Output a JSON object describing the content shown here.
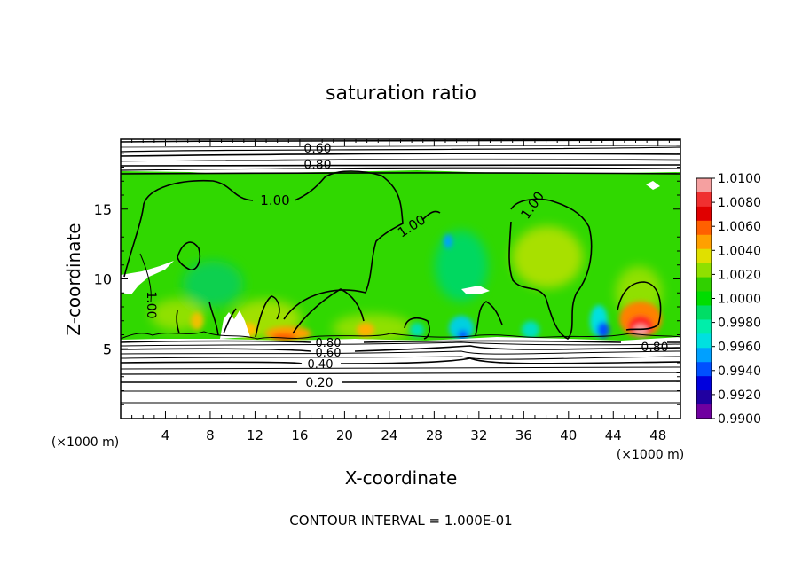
{
  "chart_data": {
    "type": "heatmap",
    "title": "saturation ratio",
    "xlabel": "X-coordinate",
    "ylabel": "Z-coordinate",
    "x_unit_left": "(×1000 m)",
    "x_unit_right": "(×1000 m)",
    "xlim": [
      0,
      50
    ],
    "ylim": [
      0,
      20
    ],
    "x_ticks": [
      4,
      8,
      12,
      16,
      20,
      24,
      28,
      32,
      36,
      40,
      44,
      48
    ],
    "x_tick_labels": [
      "4",
      "8",
      "12",
      "16",
      "20",
      "24",
      "28",
      "32",
      "36",
      "40",
      "44",
      "48"
    ],
    "y_ticks": [
      5,
      10,
      15
    ],
    "y_tick_labels": [
      "5",
      "10",
      "15"
    ],
    "colorbar": {
      "range": [
        0.99,
        1.01
      ],
      "labels": [
        "1.0100",
        "1.0080",
        "1.0060",
        "1.0040",
        "1.0020",
        "1.0000",
        "0.9980",
        "0.9960",
        "0.9940",
        "0.9920",
        "0.9900"
      ],
      "colors": [
        "#f5a0a0",
        "#f03030",
        "#e00000",
        "#ff6000",
        "#ffa000",
        "#e0e000",
        "#90e000",
        "#30d000",
        "#00dd00",
        "#00dd66",
        "#00eeaa",
        "#00e0e0",
        "#00a0ff",
        "#0050ff",
        "#0000dd",
        "#2000a0",
        "#7000a0"
      ]
    },
    "contour_interval_text": "CONTOUR INTERVAL = 1.000E-01",
    "contour_labels": [
      {
        "text": "0.60",
        "value": 0.6,
        "x": 34.6,
        "z": 19.0
      },
      {
        "text": "0.80",
        "value": 0.8,
        "x": 34.6,
        "z": 18.0
      },
      {
        "text": "1.00",
        "value": 1.0,
        "x": 12.6,
        "z": 15.6
      },
      {
        "text": "1.00",
        "value": 1.0,
        "x": 24.0,
        "z": 13.4
      },
      {
        "text": "1.00",
        "value": 1.0,
        "x": 36.3,
        "z": 15.1
      },
      {
        "text": "1.00",
        "value": 1.0,
        "x": 2.6,
        "z": 8.6
      },
      {
        "text": "0.80",
        "value": 0.8,
        "x": 20.0,
        "z": 5.0
      },
      {
        "text": "0.60",
        "value": 0.6,
        "x": 20.0,
        "z": 4.6
      },
      {
        "text": "0.40",
        "value": 0.4,
        "x": 19.2,
        "z": 3.9
      },
      {
        "text": "0.20",
        "value": 0.2,
        "x": 18.0,
        "z": 2.5
      },
      {
        "text": "0.80",
        "value": 0.8,
        "x": 48.0,
        "z": 5.1
      }
    ],
    "field_features": [
      {
        "kind": "supersaturated-max",
        "x": 45.8,
        "z": 6.3,
        "value": 1.009
      },
      {
        "kind": "supersaturated",
        "x": 14.0,
        "z": 6.2,
        "value": 1.005
      },
      {
        "kind": "supersaturated",
        "x": 38.0,
        "z": 11.0,
        "value": 1.0025
      },
      {
        "kind": "subsaturated-min",
        "x": 43.3,
        "z": 6.0,
        "value": 0.993
      },
      {
        "kind": "subsaturated",
        "x": 30.5,
        "z": 6.0,
        "value": 0.994
      }
    ]
  }
}
